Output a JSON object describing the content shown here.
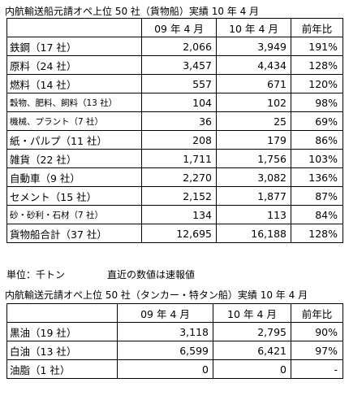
{
  "table1": {
    "title": "内航輸送船元請オペ上位 50 社（貨物船）実績 10 年 4 月",
    "headers": [
      "",
      "09 年 4 月",
      "10 年 4 月",
      "前年比"
    ],
    "rows": [
      {
        "label": "鉄鋼（17 社）",
        "v09": "2,066",
        "v10": "3,949",
        "ratio": "191%"
      },
      {
        "label": "原料（24 社）",
        "v09": "3,457",
        "v10": "4,434",
        "ratio": "128%"
      },
      {
        "label": "燃料（14 社）",
        "v09": "557",
        "v10": "671",
        "ratio": "120%"
      },
      {
        "label": "穀物、肥料、飼料（13 社）",
        "v09": "104",
        "v10": "102",
        "ratio": "98%"
      },
      {
        "label": "機械、プラント（7 社）",
        "v09": "36",
        "v10": "25",
        "ratio": "69%"
      },
      {
        "label": "紙・パルプ（11 社）",
        "v09": "208",
        "v10": "179",
        "ratio": "86%"
      },
      {
        "label": "雑貨（22 社）",
        "v09": "1,711",
        "v10": "1,756",
        "ratio": "103%"
      },
      {
        "label": "自動車（9 社）",
        "v09": "2,270",
        "v10": "3,082",
        "ratio": "136%"
      },
      {
        "label": "セメント（15 社）",
        "v09": "2,152",
        "v10": "1,877",
        "ratio": "87%"
      },
      {
        "label": "砂・砂利・石材（7 社）",
        "v09": "134",
        "v10": "113",
        "ratio": "84%"
      },
      {
        "label": "貨物船合計（37 社）",
        "v09": "12,695",
        "v10": "16,188",
        "ratio": "128%"
      }
    ]
  },
  "note": {
    "unit": "単位：千トン",
    "text": "直近の数値は速報値"
  },
  "table2": {
    "title": "内航輸送元請オペ上位 50 社（タンカー・特タン船）実績 10 年 4 月",
    "headers": [
      "",
      "09 年 4 月",
      "10 年 4 月",
      "前年比"
    ],
    "rows": [
      {
        "label": "黒油（19 社）",
        "v09": "3,118",
        "v10": "2,795",
        "ratio": "90%"
      },
      {
        "label": "白油（13 社）",
        "v09": "6,599",
        "v10": "6,421",
        "ratio": "97%"
      },
      {
        "label": "油脂（1 社）",
        "v09": "0",
        "v10": "0",
        "ratio": "-"
      }
    ]
  }
}
